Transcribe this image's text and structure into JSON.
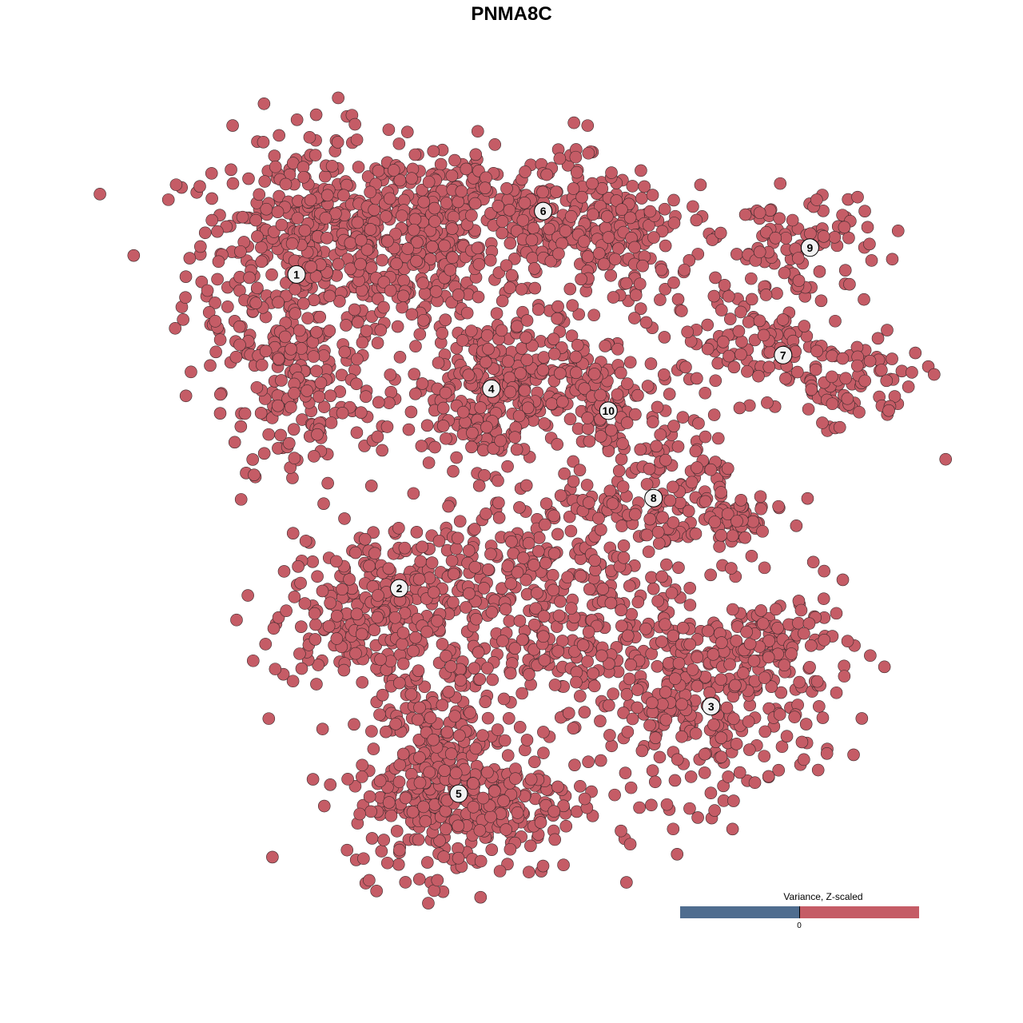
{
  "chart_data": {
    "type": "scatter",
    "title": "PNMA8C",
    "xlim": [
      -53.3,
      53.3
    ],
    "ylim": [
      -53.3,
      53.3
    ],
    "grid": false,
    "axes_visible": false,
    "point_color": "#c55c66",
    "point_edge_color": "#3b2a2c",
    "clusters": [
      {
        "label": "1",
        "center": [
          -22.4,
          24.7
        ],
        "components": [
          [
            -22,
            25,
            6,
            7,
            350
          ],
          [
            -15,
            30,
            7,
            4,
            200
          ],
          [
            -22,
            12,
            4,
            5,
            120
          ]
        ]
      },
      {
        "label": "2",
        "center": [
          -11.7,
          -8.0
        ],
        "components": [
          [
            -17,
            -12,
            4,
            3,
            150
          ],
          [
            -11,
            -6,
            5,
            2,
            80
          ]
        ]
      },
      {
        "label": "3",
        "center": [
          20.8,
          -20.3
        ],
        "components": [
          [
            20,
            -20,
            6,
            5,
            300
          ],
          [
            28,
            -14,
            4,
            3,
            100
          ]
        ]
      },
      {
        "label": "4",
        "center": [
          -2.1,
          12.8
        ],
        "components": [
          [
            -2,
            12.5,
            4.5,
            4,
            300
          ]
        ]
      },
      {
        "label": "5",
        "center": [
          -5.5,
          -29.4
        ],
        "components": [
          [
            -5,
            -30,
            6,
            4,
            350
          ],
          [
            2,
            -10,
            8,
            6,
            400
          ],
          [
            -8,
            -20,
            3,
            6,
            150
          ]
        ]
      },
      {
        "label": "6",
        "center": [
          3.3,
          31.3
        ],
        "components": [
          [
            0,
            31,
            8,
            3.5,
            300
          ],
          [
            10,
            27,
            5,
            4,
            150
          ],
          [
            -8,
            27,
            4,
            4,
            120
          ]
        ]
      },
      {
        "label": "7",
        "center": [
          28.3,
          16.3
        ],
        "components": [
          [
            25,
            18,
            5,
            3,
            110
          ],
          [
            35,
            13,
            4,
            2.5,
            90
          ]
        ]
      },
      {
        "label": "8",
        "center": [
          14.8,
          1.4
        ],
        "components": [
          [
            18,
            5,
            3,
            4,
            80
          ],
          [
            22,
            -1,
            3,
            2,
            70
          ],
          [
            10,
            0,
            4,
            2,
            60
          ]
        ]
      },
      {
        "label": "9",
        "center": [
          31.1,
          27.5
        ],
        "components": [
          [
            30,
            28,
            4,
            2.5,
            90
          ]
        ]
      },
      {
        "label": "10",
        "center": [
          10.1,
          10.5
        ],
        "components": [
          [
            8,
            13,
            3,
            2,
            60
          ],
          [
            10,
            10,
            1.5,
            2.5,
            40
          ]
        ]
      }
    ],
    "legend": {
      "title": "Variance, Z-scaled",
      "tick_label": "0",
      "negative_color": "#4f6d8f",
      "positive_color": "#c55c66",
      "placement": "bottom-right"
    }
  }
}
